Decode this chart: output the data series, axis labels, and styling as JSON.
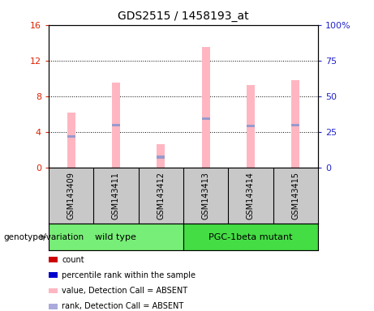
{
  "title": "GDS2515 / 1458193_at",
  "samples": [
    "GSM143409",
    "GSM143411",
    "GSM143412",
    "GSM143413",
    "GSM143414",
    "GSM143415"
  ],
  "pink_bars": [
    6.2,
    9.5,
    2.7,
    13.5,
    9.3,
    9.8
  ],
  "blue_marks": [
    3.5,
    4.8,
    1.2,
    5.5,
    4.7,
    4.8
  ],
  "ylim_left": [
    0,
    16
  ],
  "ylim_right": [
    0,
    100
  ],
  "yticks_left": [
    0,
    4,
    8,
    12,
    16
  ],
  "yticks_right": [
    0,
    25,
    50,
    75,
    100
  ],
  "yticklabels_right": [
    "0",
    "25",
    "50",
    "75",
    "100%"
  ],
  "group_label": "genotype/variation",
  "pink_color": "#FFB6C1",
  "blue_color": "#9999CC",
  "bar_width": 0.18,
  "bg_color": "#C8C8C8",
  "plot_bg": "#FFFFFF",
  "left_tick_color": "#DD2200",
  "right_tick_color": "#2222CC",
  "legend_items": [
    {
      "color": "#CC0000",
      "label": "count"
    },
    {
      "color": "#0000CC",
      "label": "percentile rank within the sample"
    },
    {
      "color": "#FFB6C1",
      "label": "value, Detection Call = ABSENT"
    },
    {
      "color": "#AAAADD",
      "label": "rank, Detection Call = ABSENT"
    }
  ],
  "group_boundaries": [
    [
      -0.5,
      2.5,
      "wild type"
    ],
    [
      2.5,
      5.5,
      "PGC-1beta mutant"
    ]
  ],
  "group_colors": [
    "#77EE77",
    "#44DD44"
  ]
}
